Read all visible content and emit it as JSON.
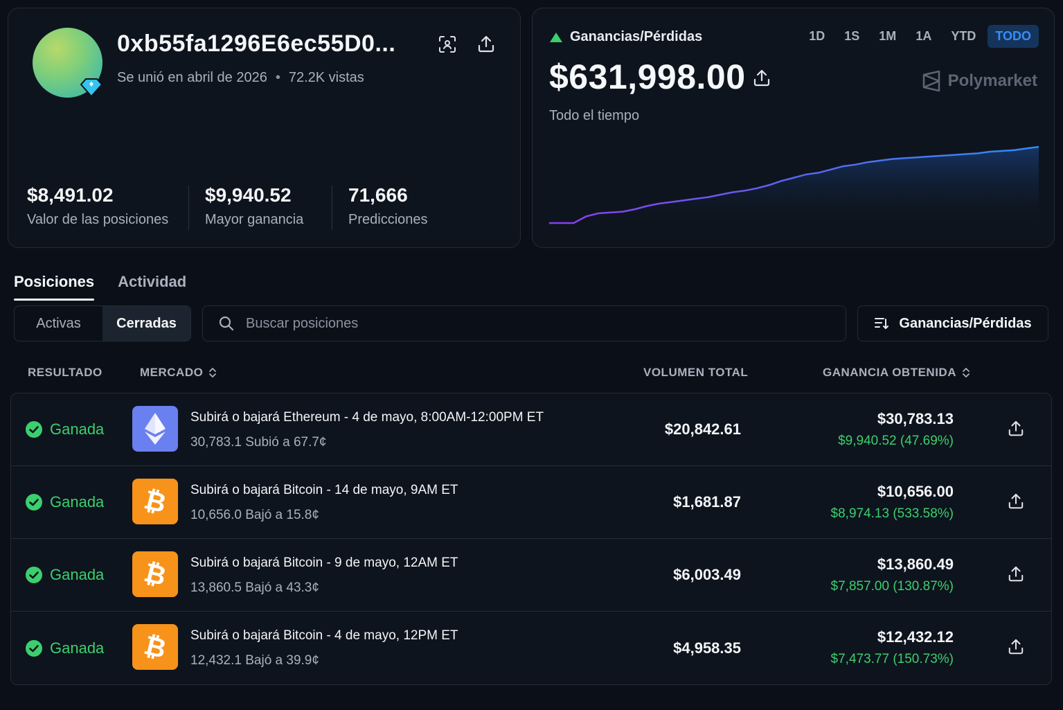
{
  "profile": {
    "wallet": "0xb55fa1296E6ec55D0...",
    "joined": "Se unió en abril de 2026",
    "views": "72.2K vistas",
    "stats": [
      {
        "value": "$8,491.02",
        "label": "Valor de las posiciones"
      },
      {
        "value": "$9,940.52",
        "label": "Mayor ganancia"
      },
      {
        "value": "71,666",
        "label": "Predicciones"
      }
    ]
  },
  "pnl": {
    "title": "Ganancias/Pérdidas",
    "value": "$631,998.00",
    "period_label": "Todo el tiempo",
    "brand": "Polymarket",
    "ranges": [
      "1D",
      "1S",
      "1M",
      "1A",
      "YTD",
      "TODO"
    ],
    "active_range": "TODO",
    "colors": {
      "up": "#3ccf6e",
      "line_start": "#8b3cf0",
      "line_end": "#2f8cf5"
    }
  },
  "chart_data": {
    "type": "area",
    "x": [
      0,
      1,
      2,
      3,
      4,
      5,
      6,
      7,
      8,
      9,
      10,
      11,
      12,
      13,
      14,
      15,
      16,
      17,
      18,
      19,
      20,
      21,
      22,
      23,
      24,
      25,
      26,
      27,
      28,
      29,
      30,
      31,
      32,
      33,
      34,
      35,
      36,
      37,
      38,
      39,
      40
    ],
    "values": [
      0,
      0,
      0,
      8,
      12,
      13,
      14,
      17,
      21,
      24,
      26,
      28,
      30,
      32,
      35,
      38,
      40,
      43,
      47,
      52,
      56,
      60,
      62,
      66,
      70,
      72,
      75,
      77,
      79,
      80,
      81,
      82,
      83,
      84,
      85,
      86,
      88,
      89,
      90,
      92,
      94
    ],
    "xlabel": "",
    "ylabel": ""
  },
  "tabs": [
    {
      "label": "Posiciones",
      "active": true
    },
    {
      "label": "Actividad",
      "active": false
    }
  ],
  "filters": {
    "segments": [
      {
        "label": "Activas",
        "active": false
      },
      {
        "label": "Cerradas",
        "active": true
      }
    ],
    "search_placeholder": "Buscar posiciones",
    "sort_label": "Ganancias/Pérdidas"
  },
  "table": {
    "headers": {
      "result": "RESULTADO",
      "market": "MERCADO",
      "volume": "VOLUMEN TOTAL",
      "gain": "GANANCIA OBTENIDA"
    },
    "rows": [
      {
        "result": "Ganada",
        "coin": "eth-icon",
        "title": "Subirá o bajará Ethereum - 4 de mayo, 8:00AM-12:00PM ET",
        "sub": "30,783.1 Subió a 67.7¢",
        "volume": "$20,842.61",
        "total": "$30,783.13",
        "pct": "$9,940.52 (47.69%)"
      },
      {
        "result": "Ganada",
        "coin": "bitcoin-icon",
        "title": "Subirá o bajará Bitcoin - 14 de mayo, 9AM ET",
        "sub": "10,656.0 Bajó  a 15.8¢",
        "volume": "$1,681.87",
        "total": "$10,656.00",
        "pct": "$8,974.13 (533.58%)"
      },
      {
        "result": "Ganada",
        "coin": "bitcoin-icon",
        "title": "Subirá o bajará Bitcoin - 9 de mayo, 12AM ET",
        "sub": "13,860.5 Bajó  a 43.3¢",
        "volume": "$6,003.49",
        "total": "$13,860.49",
        "pct": "$7,857.00 (130.87%)"
      },
      {
        "result": "Ganada",
        "coin": "bitcoin-icon",
        "title": "Subirá o bajará Bitcoin - 4 de mayo, 12PM ET",
        "sub": "12,432.1 Bajó  a 39.9¢",
        "volume": "$4,958.35",
        "total": "$12,432.12",
        "pct": "$7,473.77 (150.73%)"
      }
    ]
  }
}
